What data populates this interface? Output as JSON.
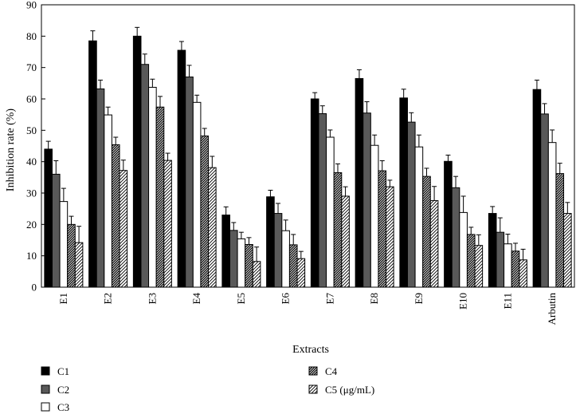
{
  "chart_data": {
    "type": "bar",
    "title": "",
    "xlabel": "Extracts",
    "ylabel": "Inhibition rate (%)",
    "ylim": [
      0,
      90
    ],
    "yticks": [
      0,
      10,
      20,
      30,
      40,
      50,
      60,
      70,
      80,
      90
    ],
    "grid": false,
    "legend_position": "bottom-left",
    "categories": [
      "E1",
      "E2",
      "E3",
      "E4",
      "E5",
      "E6",
      "E7",
      "E8",
      "E9",
      "E10",
      "E11",
      "Arbutin"
    ],
    "series": [
      {
        "name": "C1",
        "pattern": "solid-black",
        "values": [
          44,
          78.5,
          80,
          75.5,
          23,
          28.8,
          60,
          66.5,
          60.3,
          40.1,
          23.5,
          63
        ],
        "errors": [
          2.5,
          3.2,
          2.8,
          2.8,
          2.6,
          2.1,
          2.0,
          2.8,
          2.8,
          2.0,
          2.2,
          3.0
        ]
      },
      {
        "name": "C2",
        "pattern": "solid-gray",
        "values": [
          36,
          63.2,
          71,
          67,
          18.1,
          23.5,
          55.3,
          55.5,
          52.6,
          31.7,
          17.5,
          55.2
        ],
        "errors": [
          4.3,
          2.8,
          3.3,
          3.7,
          2.5,
          3.2,
          2.5,
          3.6,
          3.0,
          3.6,
          4.6,
          3.3
        ]
      },
      {
        "name": "C3",
        "pattern": "white",
        "values": [
          27.3,
          54.9,
          63.7,
          58.9,
          15.4,
          18,
          47.8,
          45.2,
          44.7,
          23.8,
          13.8,
          46.1
        ],
        "errors": [
          4.2,
          2.5,
          2.6,
          2.3,
          2.1,
          3.4,
          2.3,
          3.3,
          3.8,
          5.2,
          3.1,
          4.0
        ]
      },
      {
        "name": "C4",
        "pattern": "dense-hatch",
        "values": [
          20,
          45.4,
          57.4,
          48.2,
          13.6,
          13.5,
          36.5,
          37.1,
          35.3,
          16.8,
          11.5,
          36.2
        ],
        "errors": [
          2.6,
          2.4,
          3.4,
          2.4,
          2.2,
          3.3,
          2.8,
          3.2,
          2.6,
          2.3,
          2.5,
          3.3
        ]
      },
      {
        "name": "C5 (μg/mL)",
        "pattern": "sparse-hatch",
        "values": [
          14.2,
          37.2,
          40.4,
          38.1,
          8.2,
          9.1,
          29,
          32,
          27.6,
          13.3,
          8.7,
          23.5
        ],
        "errors": [
          5.2,
          3.3,
          2.3,
          3.6,
          4.6,
          2.3,
          3.0,
          2.1,
          4.5,
          3.4,
          3.4,
          3.5
        ]
      }
    ]
  }
}
